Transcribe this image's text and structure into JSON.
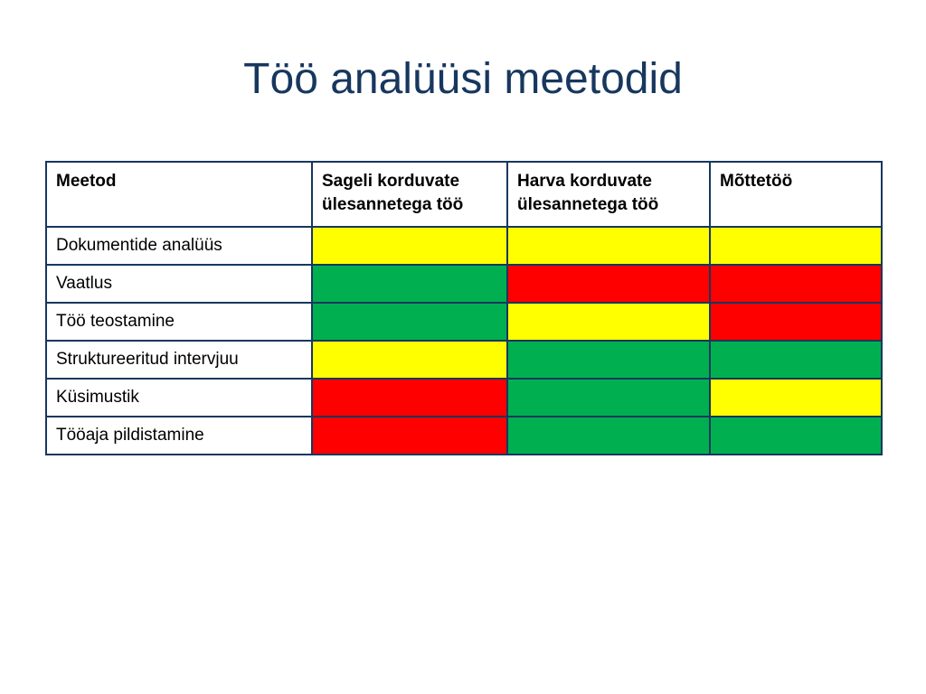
{
  "title": "Töö analüüsi meetodid",
  "table": {
    "headers": [
      "Meetod",
      "Sageli korduvate ülesannetega töö",
      "Harva korduvate ülesannetega töö",
      "Mõttetöö"
    ],
    "rows": [
      {
        "method": "Dokumentide analüüs",
        "ratings": [
          "yellow",
          "yellow",
          "yellow"
        ]
      },
      {
        "method": "Vaatlus",
        "ratings": [
          "green",
          "red",
          "red"
        ]
      },
      {
        "method": "Töö teostamine",
        "ratings": [
          "green",
          "yellow",
          "red"
        ]
      },
      {
        "method": "Struktureeritud intervjuu",
        "ratings": [
          "yellow",
          "green",
          "green"
        ]
      },
      {
        "method": "Küsimustik",
        "ratings": [
          "red",
          "green",
          "yellow"
        ]
      },
      {
        "method": "Tööaja pildistamine",
        "ratings": [
          "red",
          "green",
          "green"
        ]
      }
    ]
  },
  "colors": {
    "title": "#17375e",
    "border": "#17375e",
    "yellow": "#ffff00",
    "green": "#00b050",
    "red": "#ff0000"
  }
}
